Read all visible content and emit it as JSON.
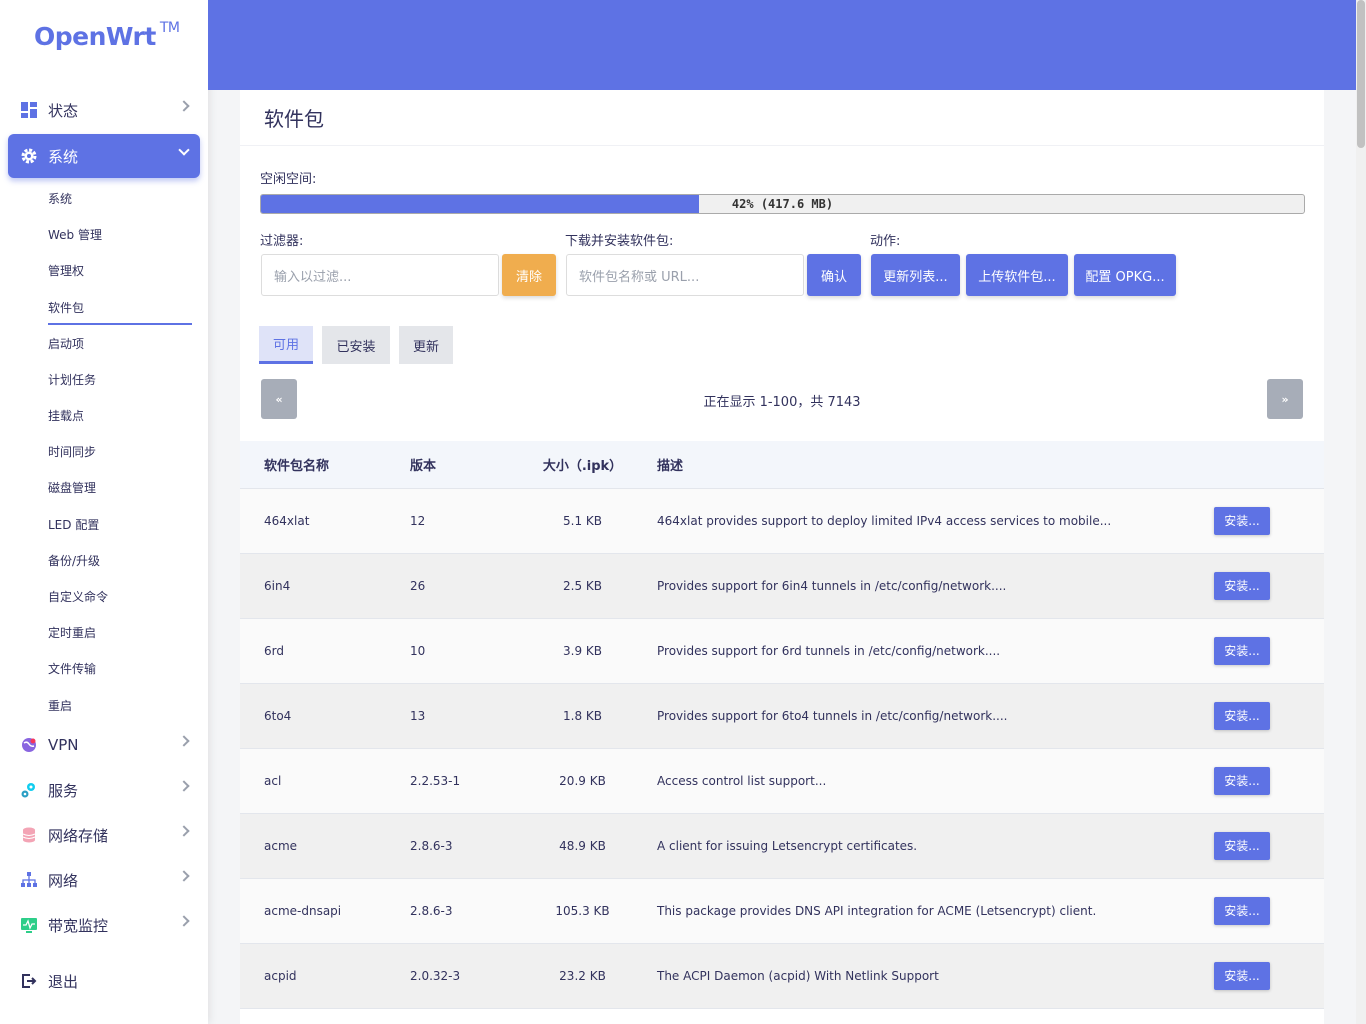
{
  "brand": {
    "name": "OpenWrt",
    "tm": "TM"
  },
  "menu": {
    "status": "状态",
    "system": "系统",
    "vpn": "VPN",
    "services": "服务",
    "nas": "网络存储",
    "network": "网络",
    "bandwidth": "带宽监控",
    "logout": "退出"
  },
  "submenu": [
    "系统",
    "Web 管理",
    "管理权",
    "软件包",
    "启动项",
    "计划任务",
    "挂载点",
    "时间同步",
    "磁盘管理",
    "LED 配置",
    "备份/升级",
    "自定义命令",
    "定时重启",
    "文件传输",
    "重启"
  ],
  "page": {
    "title": "软件包",
    "free_space_label": "空闲空间:",
    "free_space_text": "42% (417.6 MB)",
    "free_space_fraction": 0.42,
    "filter_label": "过滤器:",
    "filter_placeholder": "输入以过滤...",
    "clear_button": "清除",
    "download_label": "下载并安装软件包:",
    "download_placeholder": "软件包名称或 URL...",
    "confirm_button": "确认",
    "actions_label": "动作:",
    "update_lists_button": "更新列表...",
    "upload_button": "上传软件包...",
    "config_button": "配置 OPKG..."
  },
  "tabs": {
    "available": "可用",
    "installed": "已安装",
    "updates": "更新"
  },
  "pager": {
    "prev": "«",
    "next": "»",
    "info": "正在显示 1-100，共 7143"
  },
  "table": {
    "headers": {
      "name": "软件包名称",
      "version": "版本",
      "size": "大小（.ipk）",
      "desc": "描述"
    },
    "install_label": "安装...",
    "rows": [
      {
        "name": "464xlat",
        "version": "12",
        "size": "5.1 KB",
        "desc": "464xlat provides support to deploy limited IPv4 access services to mobile..."
      },
      {
        "name": "6in4",
        "version": "26",
        "size": "2.5 KB",
        "desc": "Provides support for 6in4 tunnels in /etc/config/network...."
      },
      {
        "name": "6rd",
        "version": "10",
        "size": "3.9 KB",
        "desc": "Provides support for 6rd tunnels in /etc/config/network...."
      },
      {
        "name": "6to4",
        "version": "13",
        "size": "1.8 KB",
        "desc": "Provides support for 6to4 tunnels in /etc/config/network...."
      },
      {
        "name": "acl",
        "version": "2.2.53-1",
        "size": "20.9 KB",
        "desc": "Access control list support..."
      },
      {
        "name": "acme",
        "version": "2.8.6-3",
        "size": "48.9 KB",
        "desc": "A client for issuing Letsencrypt certificates."
      },
      {
        "name": "acme-dnsapi",
        "version": "2.8.6-3",
        "size": "105.3 KB",
        "desc": "This package provides DNS API integration for ACME (Letsencrypt) client."
      },
      {
        "name": "acpid",
        "version": "2.0.32-3",
        "size": "23.2 KB",
        "desc": "The ACPI Daemon (acpid) With Netlink Support"
      }
    ]
  }
}
